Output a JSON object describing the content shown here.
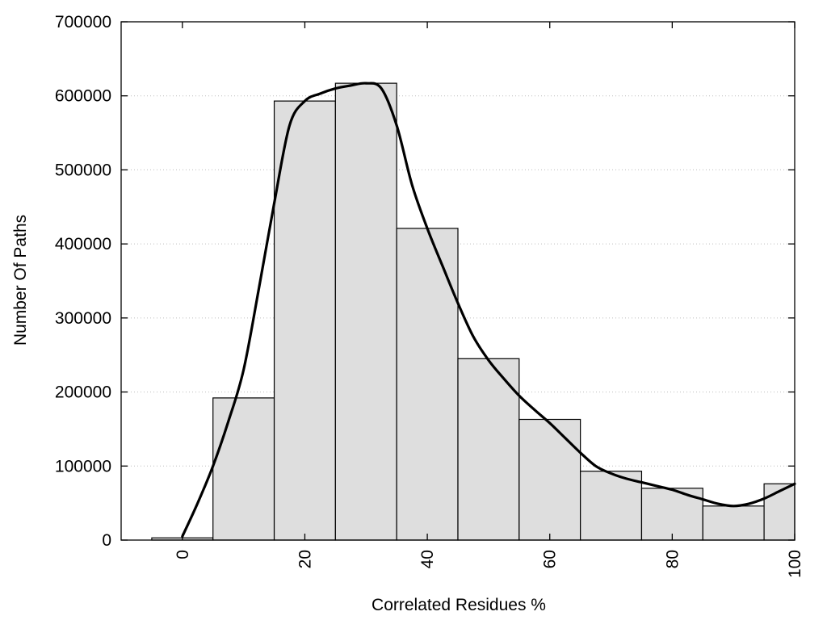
{
  "chart_data": {
    "type": "bar",
    "title": "",
    "xlabel": "Correlated Residues %",
    "ylabel": "Number Of Paths",
    "xlim": [
      -10,
      100
    ],
    "ylim": [
      0,
      700000
    ],
    "grid": true,
    "bin_width": 10,
    "bins": [
      {
        "center": 0,
        "value": 3000
      },
      {
        "center": 10,
        "value": 192000
      },
      {
        "center": 20,
        "value": 593000
      },
      {
        "center": 30,
        "value": 617000
      },
      {
        "center": 40,
        "value": 421000
      },
      {
        "center": 50,
        "value": 245000
      },
      {
        "center": 60,
        "value": 163000
      },
      {
        "center": 70,
        "value": 93000
      },
      {
        "center": 80,
        "value": 70000
      },
      {
        "center": 90,
        "value": 46000
      },
      {
        "center": 100,
        "value": 76000
      }
    ],
    "curve": {
      "type": "line",
      "x": [
        0,
        2.5,
        5,
        7.5,
        10,
        12.5,
        15,
        17.5,
        20,
        22.5,
        25,
        27.5,
        30,
        32.5,
        35,
        37.5,
        40,
        42.5,
        45,
        47.5,
        50,
        52.5,
        55,
        57.5,
        60,
        62.5,
        65,
        67.5,
        70,
        72.5,
        75,
        77.5,
        80,
        82.5,
        85,
        87.5,
        90,
        92.5,
        95,
        97.5,
        100
      ],
      "y": [
        5000,
        50000,
        100000,
        160000,
        230000,
        340000,
        455000,
        560000,
        593000,
        603000,
        610000,
        614000,
        617000,
        610000,
        560000,
        480000,
        421000,
        370000,
        320000,
        275000,
        243000,
        218000,
        195000,
        176000,
        158000,
        138000,
        118000,
        100000,
        90000,
        83000,
        78000,
        73000,
        68000,
        61000,
        55000,
        49000,
        46000,
        49000,
        56000,
        66000,
        76000
      ]
    },
    "xticks": [
      {
        "value": 0,
        "label": "0"
      },
      {
        "value": 20,
        "label": "20"
      },
      {
        "value": 40,
        "label": "40"
      },
      {
        "value": 60,
        "label": "60"
      },
      {
        "value": 80,
        "label": "80"
      },
      {
        "value": 100,
        "label": "100"
      }
    ],
    "yticks": [
      {
        "value": 0,
        "label": "0"
      },
      {
        "value": 100000,
        "label": "100000"
      },
      {
        "value": 200000,
        "label": "200000"
      },
      {
        "value": 300000,
        "label": "300000"
      },
      {
        "value": 400000,
        "label": "400000"
      },
      {
        "value": 500000,
        "label": "500000"
      },
      {
        "value": 600000,
        "label": "600000"
      },
      {
        "value": 700000,
        "label": "700000"
      }
    ],
    "colors": {
      "bar_fill": "#dedede",
      "bar_stroke": "#000000",
      "curve": "#000000",
      "grid": "#bdbdbd"
    }
  }
}
